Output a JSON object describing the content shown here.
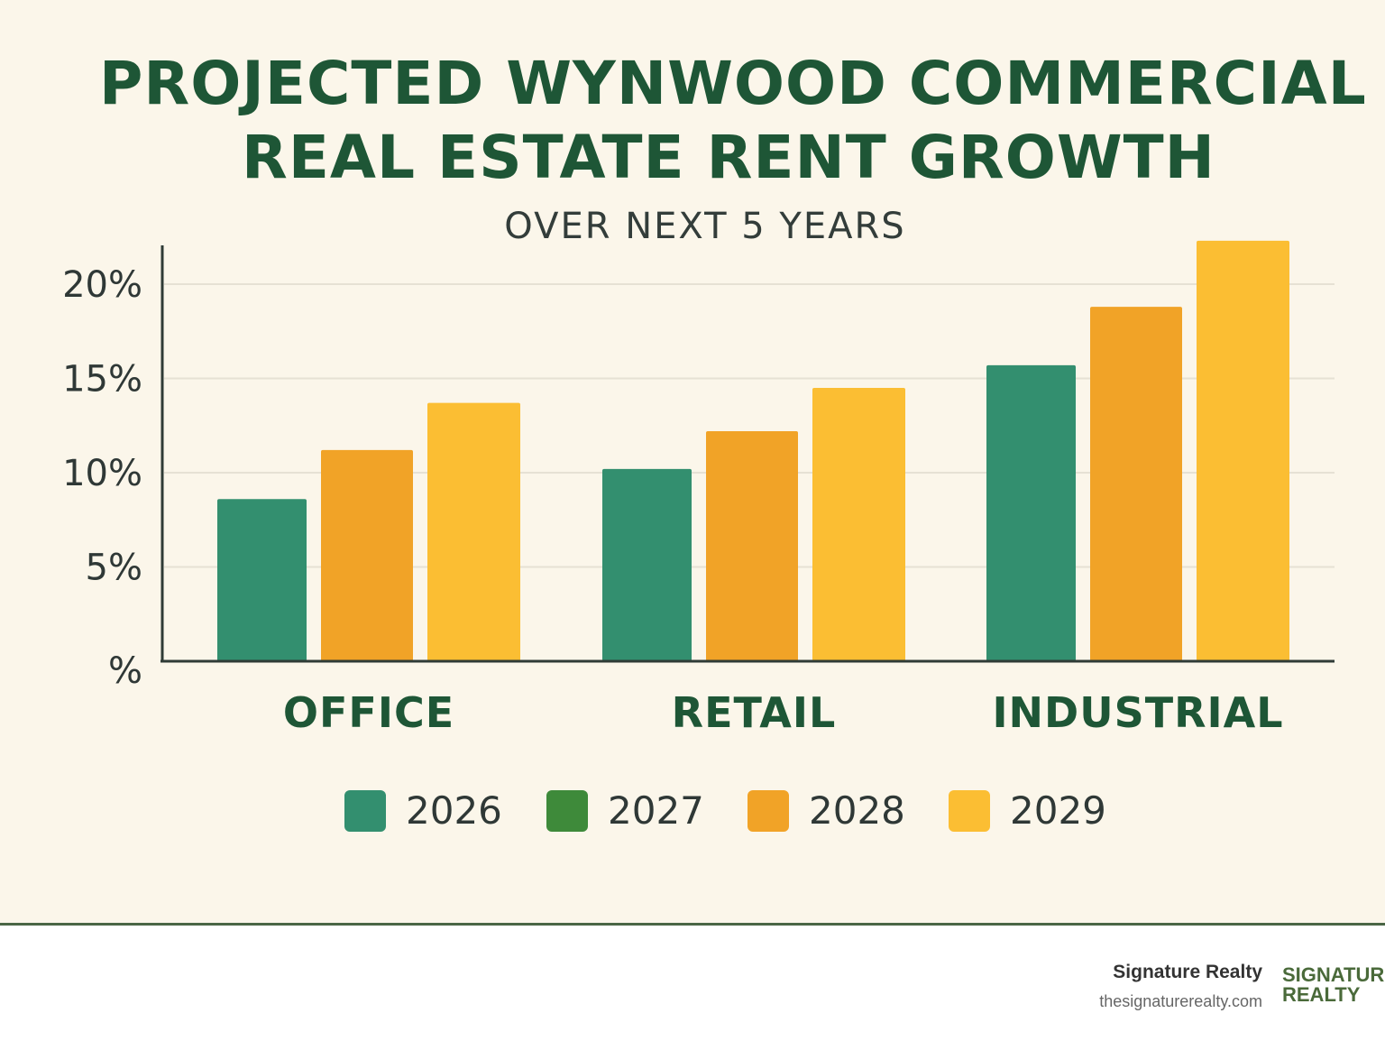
{
  "chart_data": {
    "type": "bar",
    "title_line_1": "PROJECTED WYNWOOD COMMERCIAL",
    "title_line_2": "REAL ESTATE RENT GROWTH",
    "subtitle": "OVER NEXT 5 YEARS",
    "categories": [
      "OFFICE",
      "RETAIL",
      "INDUSTRIAL"
    ],
    "series": [
      {
        "name": "2026",
        "color": "#338f6f",
        "values": [
          8.6,
          10.2,
          15.7
        ]
      },
      {
        "name": "2027",
        "color": "#3e8a3a",
        "values": [
          null,
          null,
          null
        ]
      },
      {
        "name": "2028",
        "color": "#f1a327",
        "values": [
          11.2,
          12.2,
          18.8
        ]
      },
      {
        "name": "2029",
        "color": "#fbbe33",
        "values": [
          13.7,
          14.5,
          22.3
        ]
      }
    ],
    "y_ticks": [
      {
        "value": 0,
        "label": "%"
      },
      {
        "value": 5,
        "label": "5%"
      },
      {
        "value": 10,
        "label": "10%"
      },
      {
        "value": 15,
        "label": "15%"
      },
      {
        "value": 20,
        "label": "20%"
      }
    ],
    "ylim": [
      0,
      22.3
    ],
    "xlabel": "",
    "ylabel": "",
    "grid": true,
    "legend_position": "bottom"
  },
  "footer": {
    "brand_name": "Signature Realty",
    "brand_url": "thesignaturerealty.com",
    "logo_line_1": "SIGNATURE",
    "logo_line_2": "REALTY"
  },
  "colors": {
    "background": "#fbf6ea",
    "title": "#1e5636",
    "gridline": "#e6e1d4",
    "axis": "#2f3b36"
  }
}
